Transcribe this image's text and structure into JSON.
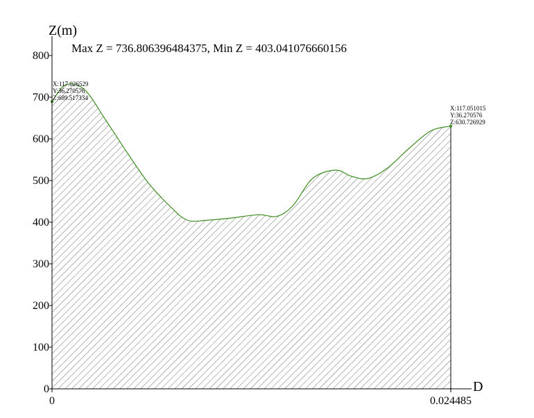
{
  "chart_data": {
    "type": "area",
    "title": "",
    "stats_text": "Max Z = 736.806396484375, Min Z = 403.041076660156",
    "xlabel": "D",
    "ylabel": "Z(m)",
    "xlim": [
      0,
      0.024485
    ],
    "ylim": [
      0,
      800
    ],
    "x_tick_labels": [
      "0",
      "0.024485"
    ],
    "y_tick_labels": [
      "0",
      "100",
      "200",
      "300",
      "400",
      "500",
      "600",
      "700",
      "800"
    ],
    "y_ticks": [
      0,
      100,
      200,
      300,
      400,
      500,
      600,
      700,
      800
    ],
    "grid": false,
    "line_color": "#3c8c1e",
    "fill_hatch_color": "#6e6e6e",
    "series": [
      {
        "x": [
          0,
          0.00085,
          0.002,
          0.0033,
          0.00465,
          0.0059,
          0.0072,
          0.0083,
          0.0096,
          0.011,
          0.0127,
          0.0138,
          0.0148,
          0.016,
          0.0174,
          0.0184,
          0.0194,
          0.0206,
          0.022,
          0.0233,
          0.024485
        ],
        "values": [
          689.5,
          730,
          718,
          645,
          565,
          495,
          440,
          405,
          405,
          410,
          418,
          414,
          440,
          505,
          525,
          510,
          505,
          530,
          580,
          620,
          630.7
        ]
      }
    ],
    "endpoints": [
      {
        "lines": [
          "X:117.026529",
          "Y:36.270576",
          "Z:689.517334"
        ]
      },
      {
        "lines": [
          "X:117.051015",
          "Y:36.270576",
          "Z:630.726929"
        ]
      }
    ]
  }
}
